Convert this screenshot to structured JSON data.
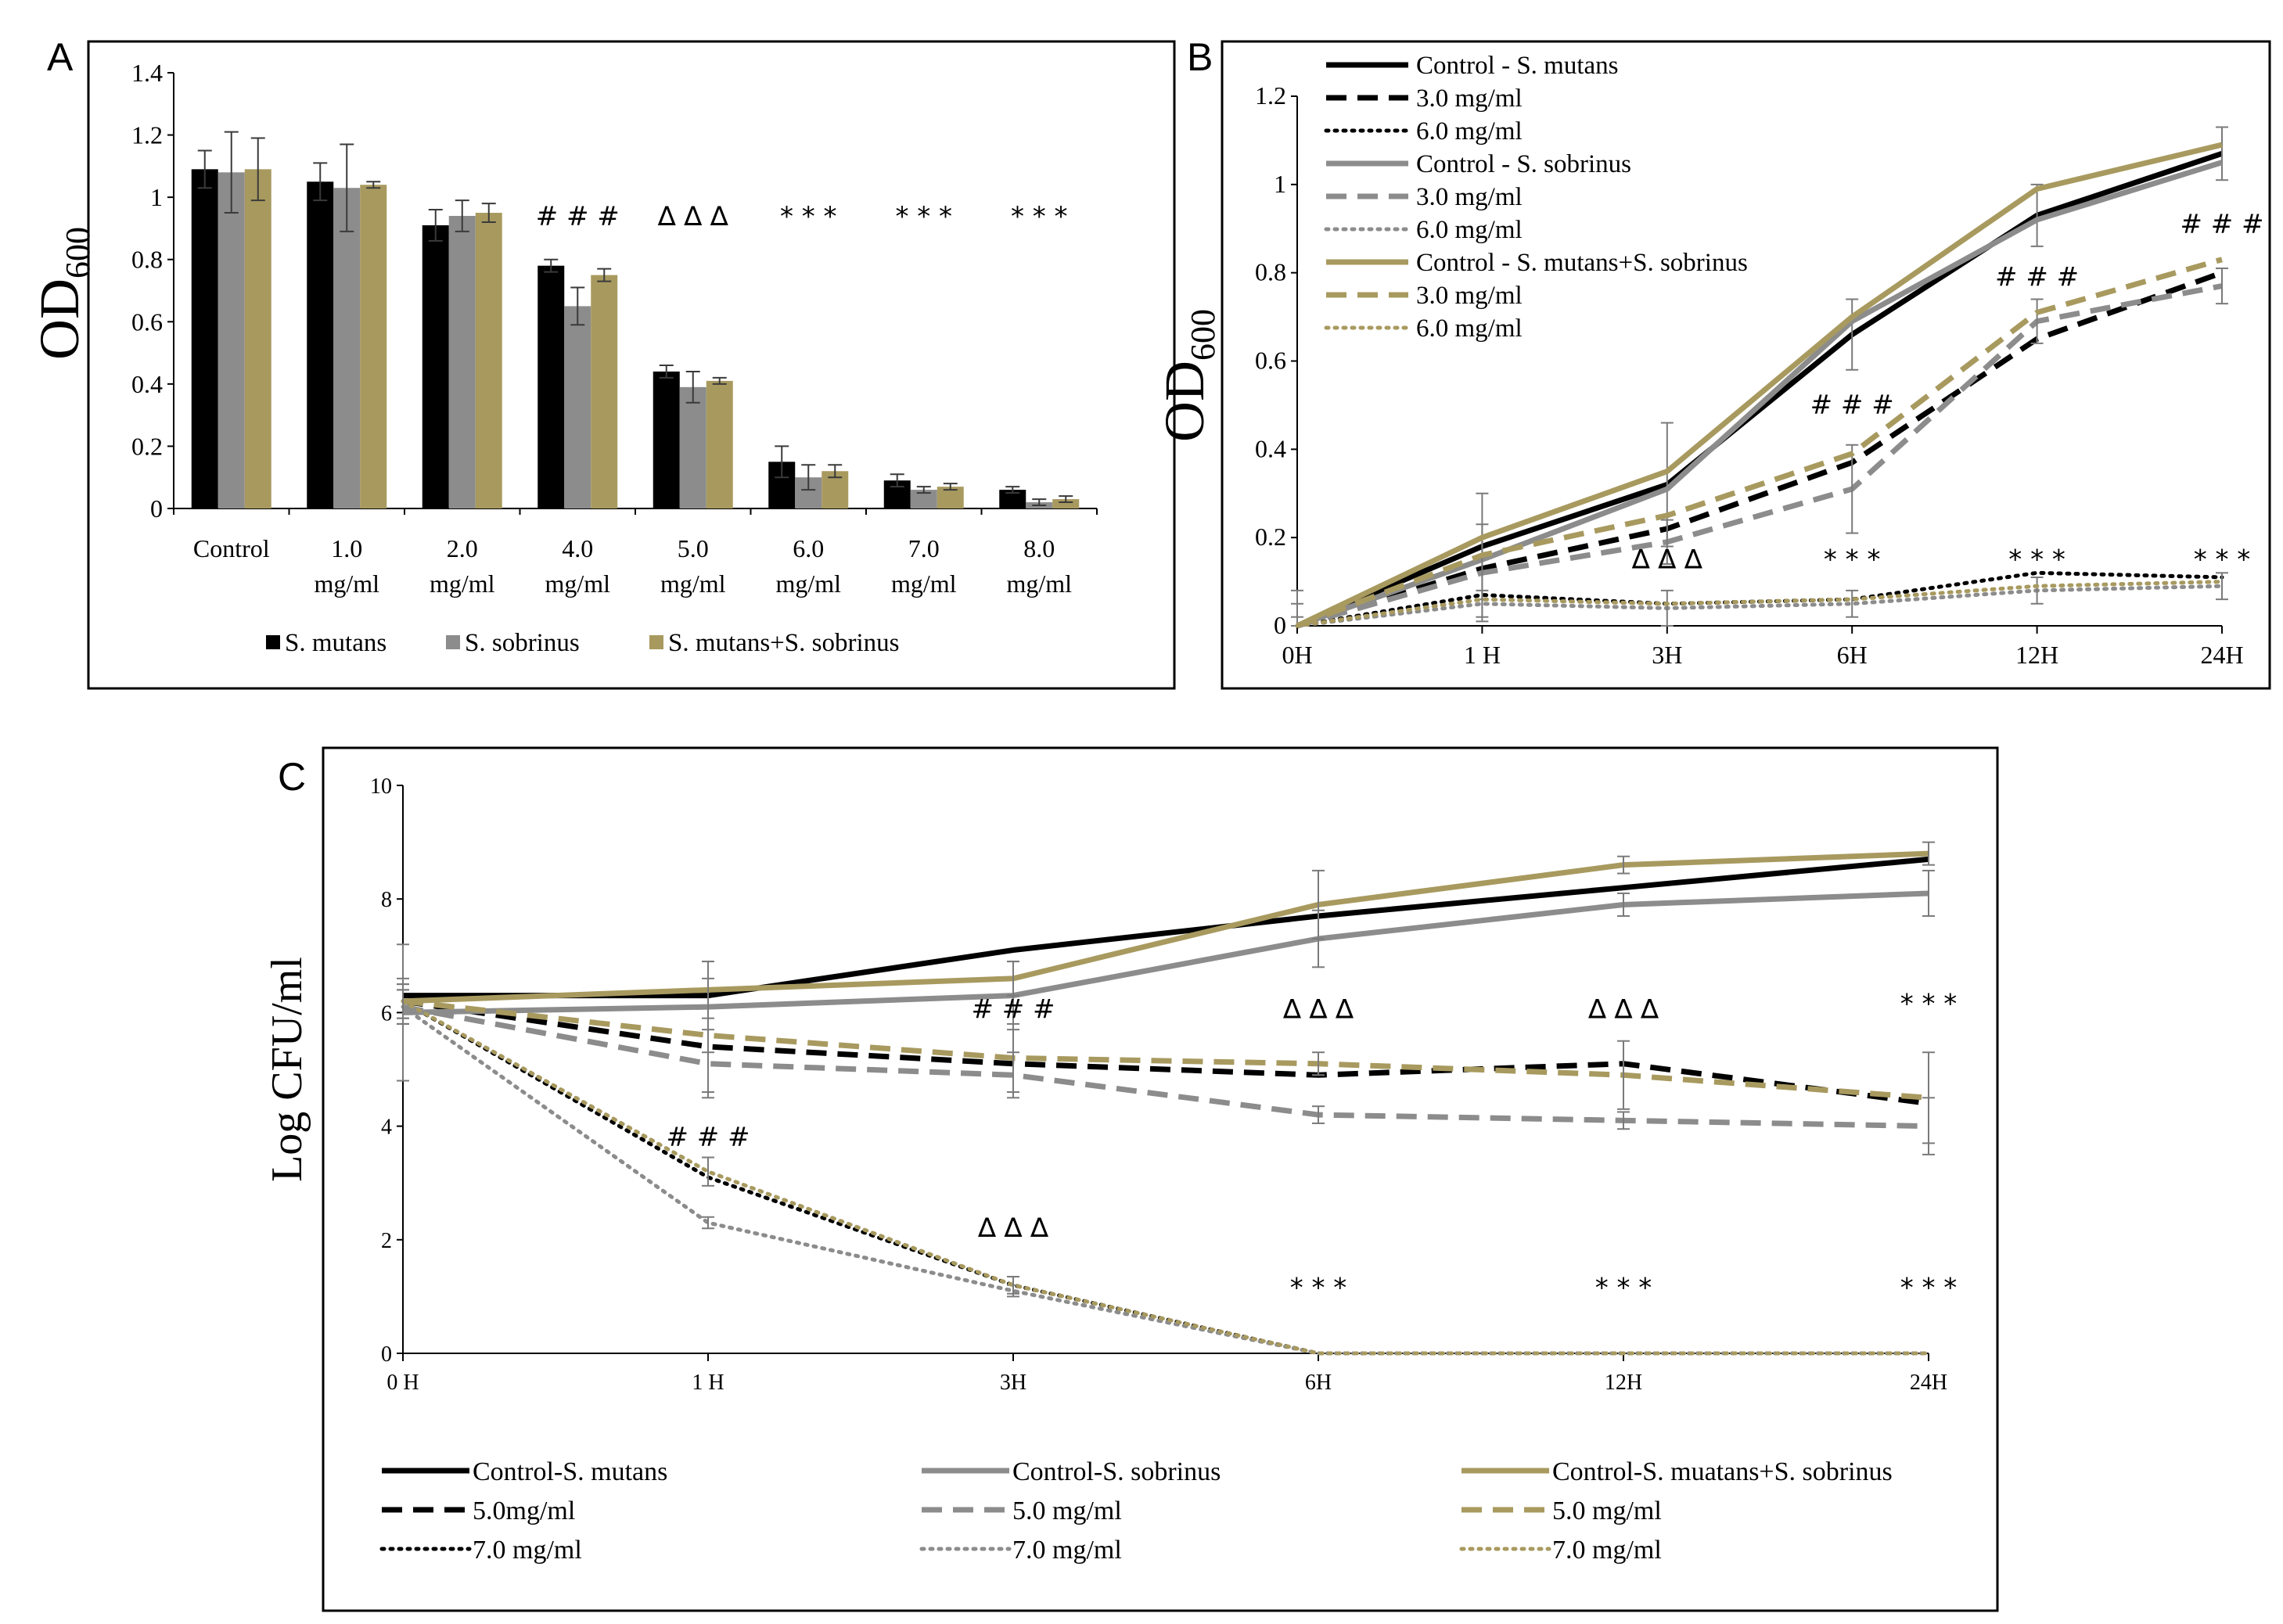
{
  "colors": {
    "black": "#000000",
    "gray": "#8c8c8c",
    "gold": "#a89a5f"
  },
  "chart_data": [
    {
      "panel": "A",
      "type": "bar",
      "ylabel": "OD",
      "ylabel_sub": "600",
      "ylim": [
        0,
        1.4
      ],
      "yticks": [
        "0",
        "0.2",
        "0.4",
        "0.6",
        "0.8",
        "1",
        "1.2",
        "1.4"
      ],
      "categories": [
        [
          "Control",
          ""
        ],
        [
          "1.0",
          "mg/ml"
        ],
        [
          "2.0",
          "mg/ml"
        ],
        [
          "4.0",
          "mg/ml"
        ],
        [
          "5.0",
          "mg/ml"
        ],
        [
          "6.0",
          "mg/ml"
        ],
        [
          "7.0",
          "mg/ml"
        ],
        [
          "8.0",
          "mg/ml"
        ]
      ],
      "series": [
        {
          "name": "S. mutans",
          "color": "#000000",
          "values": [
            1.09,
            1.05,
            0.91,
            0.78,
            0.44,
            0.15,
            0.09,
            0.06
          ],
          "errors": [
            0.06,
            0.06,
            0.05,
            0.02,
            0.02,
            0.05,
            0.02,
            0.01
          ]
        },
        {
          "name": "S. sobrinus",
          "color": "#8c8c8c",
          "values": [
            1.08,
            1.03,
            0.94,
            0.65,
            0.39,
            0.1,
            0.06,
            0.02
          ],
          "errors": [
            0.13,
            0.14,
            0.05,
            0.06,
            0.05,
            0.04,
            0.01,
            0.01
          ]
        },
        {
          "name": "S. mutans+S. sobrinus",
          "color": "#a89a5f",
          "values": [
            1.09,
            1.04,
            0.95,
            0.75,
            0.41,
            0.12,
            0.07,
            0.03
          ],
          "errors": [
            0.1,
            0.01,
            0.03,
            0.02,
            0.01,
            0.02,
            0.01,
            0.01
          ]
        }
      ],
      "annotations": [
        {
          "text": "# # #",
          "category": 3,
          "y": 0.91
        },
        {
          "text": "∆ ∆ ∆",
          "category": 4,
          "y": 0.91
        },
        {
          "text": "* * *",
          "category": 5,
          "y": 0.91
        },
        {
          "text": "* * *",
          "category": 6,
          "y": 0.91
        },
        {
          "text": "* * *",
          "category": 7,
          "y": 0.91
        }
      ]
    },
    {
      "panel": "B",
      "type": "line",
      "ylabel": "OD",
      "ylabel_sub": "600",
      "ylim": [
        0,
        1.2
      ],
      "yticks": [
        "0",
        "0.2",
        "0.4",
        "0.6",
        "0.8",
        "1",
        "1.2"
      ],
      "x": [
        "0H",
        "1 H",
        "3H",
        "6H",
        "12H",
        "24H"
      ],
      "series": [
        {
          "name": "Control - S. mutans",
          "color": "#000000",
          "style": "solid",
          "values": [
            0,
            0.18,
            0.32,
            0.66,
            0.93,
            1.07
          ],
          "errors": [
            0.02,
            0.12,
            0.14,
            0.08,
            0.07,
            0.06
          ]
        },
        {
          "name": "3.0 mg/ml",
          "color": "#000000",
          "style": "dashed",
          "values": [
            0,
            0.13,
            0.22,
            0.37,
            0.65,
            0.8
          ],
          "errors": [
            0,
            0,
            0,
            0,
            0,
            0
          ]
        },
        {
          "name": "6.0 mg/ml",
          "color": "#000000",
          "style": "dotted",
          "values": [
            0,
            0.07,
            0.05,
            0.06,
            0.12,
            0.11
          ],
          "errors": [
            0,
            0,
            0,
            0,
            0,
            0
          ]
        },
        {
          "name": "Control - S. sobrinus",
          "color": "#8c8c8c",
          "style": "solid",
          "values": [
            0,
            0.15,
            0.31,
            0.69,
            0.92,
            1.05
          ],
          "errors": [
            0,
            0,
            0,
            0,
            0,
            0
          ]
        },
        {
          "name": "3.0 mg/ml",
          "color": "#8c8c8c",
          "style": "dashed",
          "values": [
            0,
            0.12,
            0.19,
            0.31,
            0.69,
            0.77
          ],
          "errors": [
            0.08,
            0.11,
            0.05,
            0.1,
            0.05,
            0.04
          ]
        },
        {
          "name": "6.0 mg/ml",
          "color": "#8c8c8c",
          "style": "dotted",
          "values": [
            0,
            0.05,
            0.04,
            0.05,
            0.08,
            0.09
          ],
          "errors": [
            0.05,
            0.03,
            0.04,
            0.03,
            0.03,
            0.03
          ]
        },
        {
          "name": "Control - S. mutans+S. sobrinus",
          "color": "#a89a5f",
          "style": "solid",
          "values": [
            0,
            0.2,
            0.35,
            0.7,
            0.99,
            1.09
          ],
          "errors": [
            0,
            0,
            0,
            0,
            0,
            0
          ]
        },
        {
          "name": "3.0 mg/ml",
          "color": "#a89a5f",
          "style": "dashed",
          "values": [
            0,
            0.16,
            0.25,
            0.39,
            0.71,
            0.83
          ],
          "errors": [
            0,
            0,
            0,
            0,
            0,
            0
          ]
        },
        {
          "name": "6.0 mg/ml",
          "color": "#a89a5f",
          "style": "dotted",
          "values": [
            0,
            0.06,
            0.05,
            0.06,
            0.09,
            0.1
          ],
          "errors": [
            0,
            0,
            0,
            0,
            0,
            0
          ]
        }
      ],
      "annotations": [
        {
          "text": "∆ ∆ ∆",
          "x": 2,
          "y": 0.13
        },
        {
          "text": "# # #",
          "x": 3,
          "y": 0.48
        },
        {
          "text": "* * *",
          "x": 3,
          "y": 0.13
        },
        {
          "text": "# # #",
          "x": 4,
          "y": 0.77
        },
        {
          "text": "* * *",
          "x": 4,
          "y": 0.13
        },
        {
          "text": "# # #",
          "x": 5,
          "y": 0.89
        },
        {
          "text": "* * *",
          "x": 5,
          "y": 0.13
        }
      ]
    },
    {
      "panel": "C",
      "type": "line",
      "ylabel": "Log CFU/ml",
      "ylim": [
        0,
        10
      ],
      "yticks": [
        "0",
        "2",
        "4",
        "6",
        "8",
        "10"
      ],
      "x": [
        "0 H",
        "1 H",
        "3H",
        "6H",
        "12H",
        "24H"
      ],
      "series": [
        {
          "name": "Control-S. mutans",
          "color": "#000000",
          "style": "solid",
          "values": [
            6.3,
            6.3,
            7.1,
            7.7,
            8.2,
            8.7
          ],
          "errors": [
            0,
            0,
            0,
            0,
            0,
            0
          ]
        },
        {
          "name": "5.0mg/ml",
          "color": "#000000",
          "style": "dashed",
          "values": [
            6.2,
            5.4,
            5.1,
            4.9,
            5.1,
            4.4
          ],
          "errors": [
            0,
            0,
            0,
            0,
            0,
            0
          ]
        },
        {
          "name": "7.0 mg/ml",
          "color": "#000000",
          "style": "dotted",
          "values": [
            6.2,
            3.1,
            1.2,
            0,
            0,
            0
          ],
          "errors": [
            0,
            0,
            0,
            0,
            0,
            0
          ]
        },
        {
          "name": "Control-S. sobrinus",
          "color": "#8c8c8c",
          "style": "solid",
          "values": [
            6.0,
            6.1,
            6.3,
            7.3,
            7.9,
            8.1
          ],
          "errors": [
            1.2,
            0.8,
            0.6,
            0.5,
            0.2,
            0.4
          ]
        },
        {
          "name": "5.0 mg/ml",
          "color": "#8c8c8c",
          "style": "dashed",
          "values": [
            6.1,
            5.1,
            4.9,
            4.2,
            4.1,
            4.0
          ],
          "errors": [
            0.3,
            0.6,
            0.4,
            0.15,
            0.15,
            0.5
          ]
        },
        {
          "name": "7.0 mg/ml",
          "color": "#8c8c8c",
          "style": "dotted",
          "values": [
            6.1,
            2.3,
            1.1,
            0,
            0,
            0
          ],
          "errors": [
            0.3,
            0.1,
            0.1,
            0,
            0,
            0
          ]
        },
        {
          "name": "Control-S. muatans+S. sobrinus",
          "color": "#a89a5f",
          "style": "solid",
          "values": [
            6.2,
            6.4,
            6.6,
            7.9,
            8.6,
            8.8
          ],
          "errors": [
            0.4,
            0.5,
            0.3,
            0.6,
            0.15,
            0.2
          ]
        },
        {
          "name": "5.0 mg/ml",
          "color": "#a89a5f",
          "style": "dashed",
          "values": [
            6.2,
            5.6,
            5.2,
            5.1,
            4.9,
            4.5
          ],
          "errors": [
            0.3,
            1.0,
            0.6,
            0.2,
            0.6,
            0.8
          ]
        },
        {
          "name": "7.0 mg/ml",
          "color": "#a89a5f",
          "style": "dotted",
          "values": [
            6.2,
            3.2,
            1.2,
            0,
            0,
            0
          ],
          "errors": [
            0.3,
            0.25,
            0.15,
            0,
            0,
            0
          ]
        }
      ],
      "annotations": [
        {
          "text": "# # #",
          "x": 1,
          "y": 3.65
        },
        {
          "text": "# # #",
          "x": 2,
          "y": 5.9
        },
        {
          "text": "∆ ∆ ∆",
          "x": 2,
          "y": 2.05
        },
        {
          "text": "∆ ∆ ∆",
          "x": 3,
          "y": 5.9
        },
        {
          "text": "* * *",
          "x": 3,
          "y": 1.0
        },
        {
          "text": "∆ ∆ ∆",
          "x": 4,
          "y": 5.9
        },
        {
          "text": "* * *",
          "x": 4,
          "y": 1.0
        },
        {
          "text": "* * *",
          "x": 5,
          "y": 6.0
        },
        {
          "text": "* * *",
          "x": 5,
          "y": 1.0
        }
      ]
    }
  ]
}
